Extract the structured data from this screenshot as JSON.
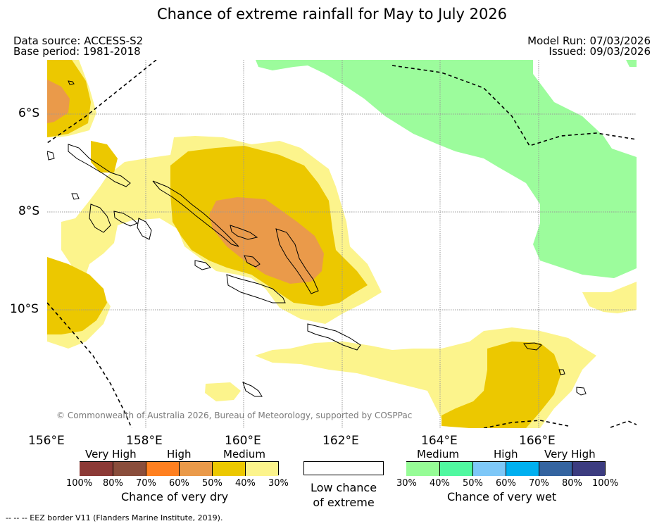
{
  "title": "Chance of extreme rainfall for May to July 2026",
  "header": {
    "data_source": "Data source: ACCESS-S2",
    "base_period": "Base period: 1981-2018",
    "model_run": "Model Run: 07/03/2026",
    "issued": "Issued: 09/03/2026"
  },
  "map": {
    "lat_labels": [
      "6°S",
      "8°S",
      "10°S"
    ],
    "lon_labels": [
      "156°E",
      "158°E",
      "160°E",
      "162°E",
      "164°E",
      "166°E"
    ],
    "copyright": "© Commonwealth of Australia 2026, Bureau of Meteorology, supported by COSPPac"
  },
  "legend": {
    "dry": {
      "headers": [
        "Very High",
        "High",
        "Medium"
      ],
      "colors": [
        "#8c3a36",
        "#8a4e3c",
        "#ff8020",
        "#ea9a4a",
        "#ecc800",
        "#fcf48c"
      ],
      "ticks": [
        "100%",
        "80%",
        "70%",
        "60%",
        "50%",
        "40%",
        "30%"
      ],
      "caption": "Chance of very dry"
    },
    "low": {
      "color": "#ffffff",
      "caption_line1": "Low chance",
      "caption_line2": "of extreme"
    },
    "wet": {
      "headers": [
        "Medium",
        "High",
        "Very High"
      ],
      "colors": [
        "#96fc96",
        "#50f8a0",
        "#7ec8f8",
        "#00b0f0",
        "#3464a0",
        "#3c3c80"
      ],
      "ticks": [
        "30%",
        "40%",
        "50%",
        "60%",
        "70%",
        "80%",
        "100%"
      ],
      "caption": "Chance of very wet"
    }
  },
  "footer": {
    "eez_note": "--  --  -- EEZ border V11 (Flanders Marine Institute, 2019)."
  }
}
